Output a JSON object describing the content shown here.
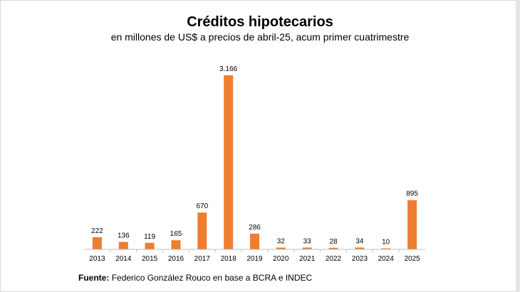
{
  "chart_data": {
    "type": "bar",
    "title": "Créditos hipotecarios",
    "subtitle": "en millones de US$ a precios de abril-25, acum primer cuatrimestre",
    "xlabel": "",
    "ylabel": "",
    "categories": [
      "2013",
      "2014",
      "2015",
      "2016",
      "2017",
      "2018",
      "2019",
      "2020",
      "2021",
      "2022",
      "2023",
      "2024",
      "2025"
    ],
    "values": [
      222,
      136,
      119,
      165,
      670,
      3166,
      286,
      32,
      33,
      28,
      34,
      10,
      895
    ],
    "value_labels": [
      "222",
      "136",
      "119",
      "165",
      "670",
      "3.166",
      "286",
      "32",
      "33",
      "28",
      "34",
      "10",
      "895"
    ],
    "ylim": [
      0,
      3166
    ],
    "grid": false,
    "color": "#ED7D31"
  },
  "source": {
    "label": "Fuente:",
    "text": "Federico González Rouco en base a BCRA e INDEC"
  }
}
